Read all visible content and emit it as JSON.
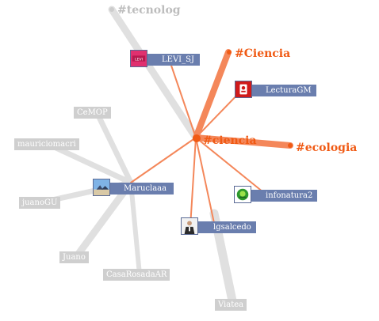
{
  "hashtags": {
    "center": "#ciencia",
    "ciencia_cap": "#Ciencia",
    "ecologia": "#ecologia",
    "tecnologia": "#tecnolog"
  },
  "users": {
    "levi": "LEVI_SJ",
    "lectura": "LecturaGM",
    "infonatura": "infonatura2",
    "maruclaaa": "Maruclaaa",
    "lgsalcedo": "lgsalcedo",
    "cemop": "CeMOP",
    "mauriciomacri": "mauriciomacri",
    "juanogu": "juanoGU",
    "juano": "Juano",
    "casarosada": "CasaRosadaAR",
    "viatea": "Viatea"
  },
  "avatar_logo_text": "LEVI",
  "colors": {
    "accent": "#f05a14",
    "edge_orange": "#f4875a",
    "edge_grey": "#e0e0e0",
    "label_active": "#6a7eae",
    "label_faded": "#cfcfcf"
  }
}
